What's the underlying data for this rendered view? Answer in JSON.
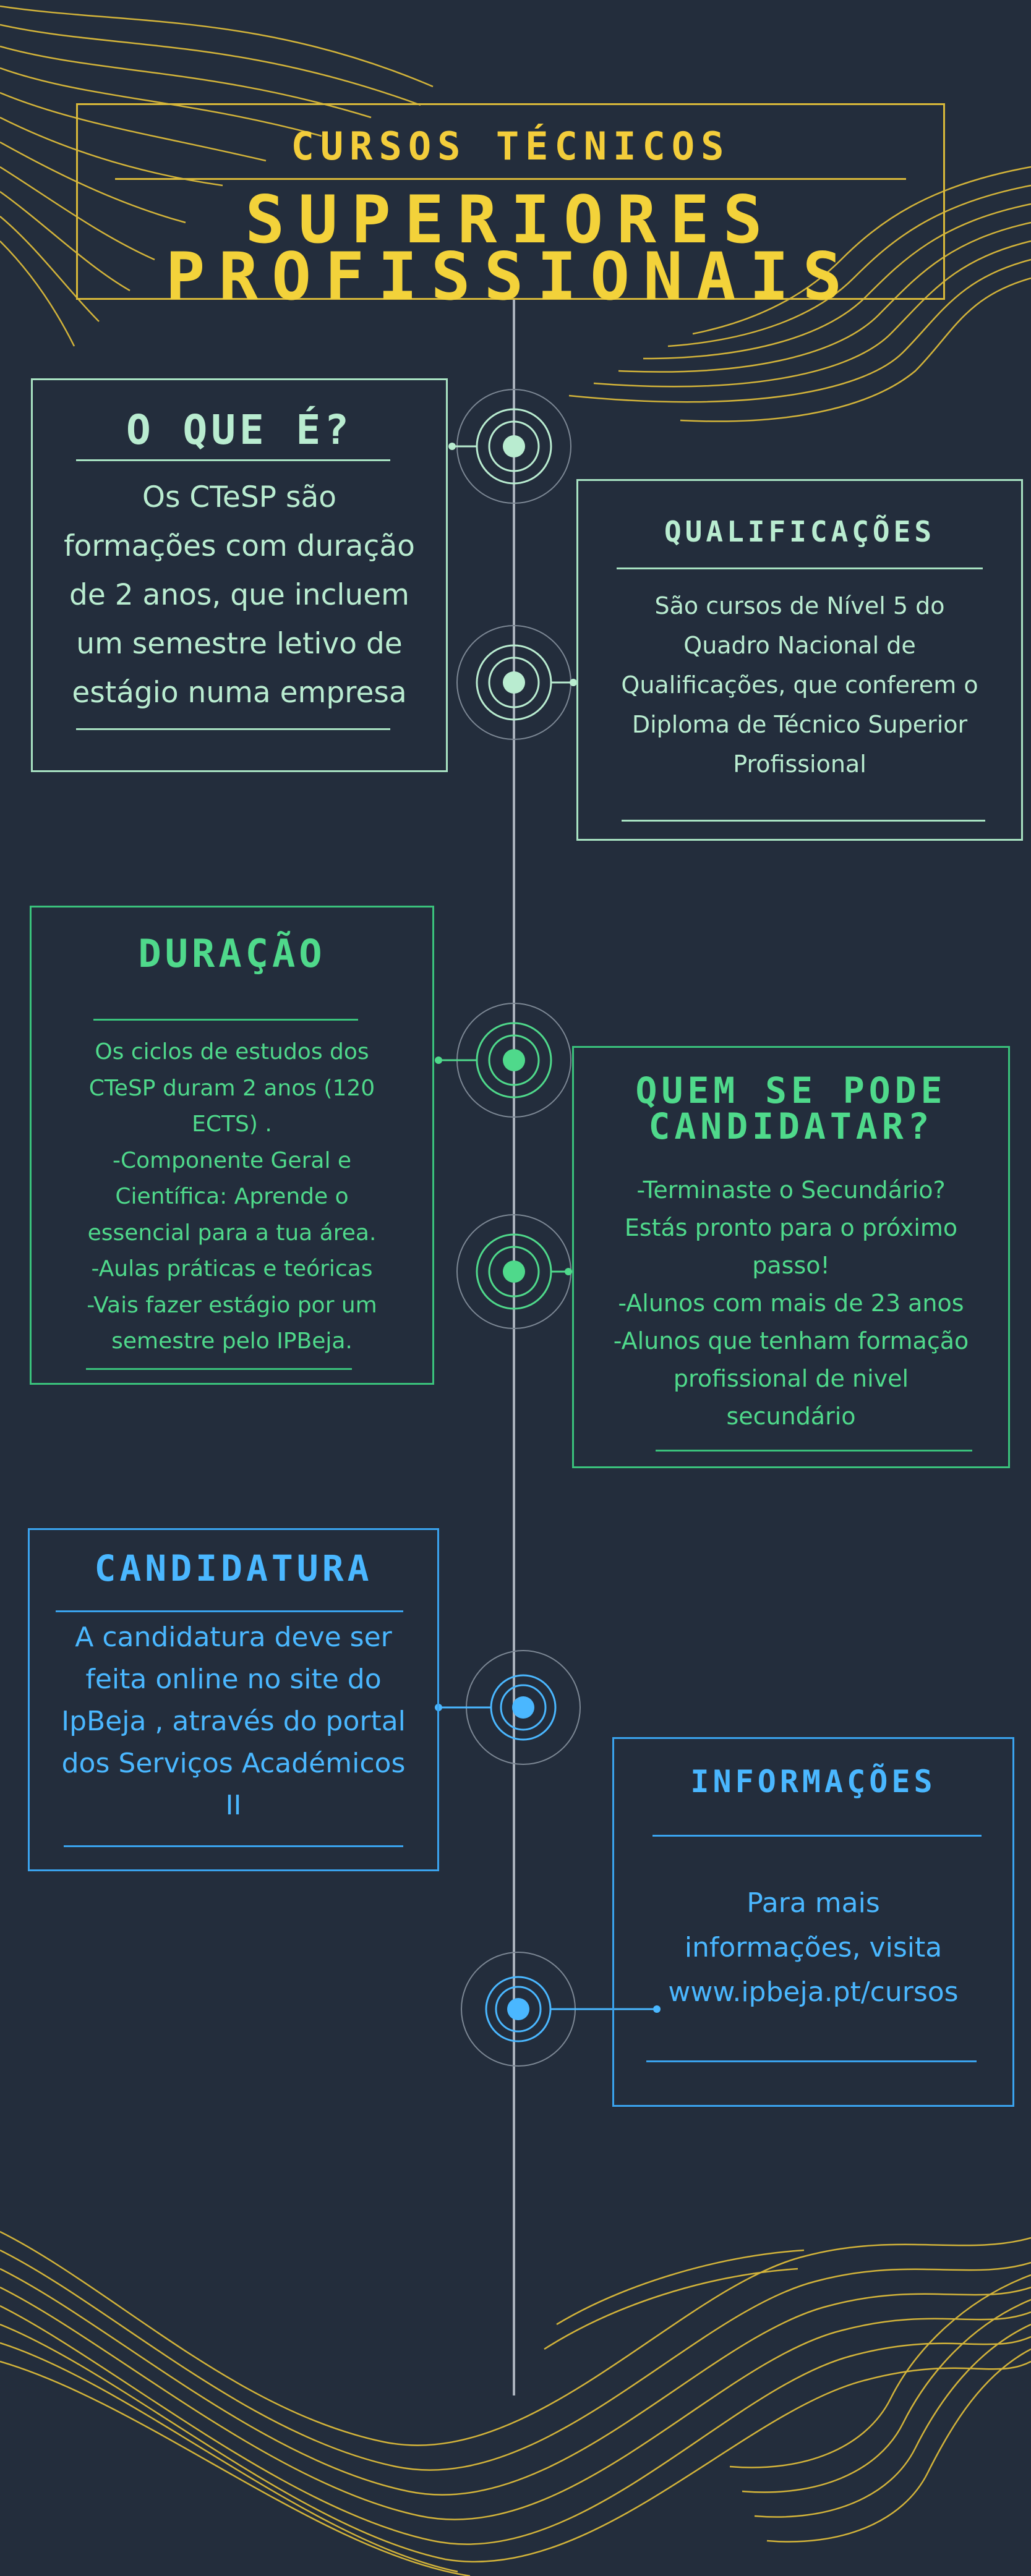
{
  "header": {
    "top_label": "CURSOS TÉCNICOS",
    "main_title_line1": "SUPERIORES",
    "main_title_line2": "PROFISSIONAIS"
  },
  "sections": {
    "o_que_e": {
      "title": "O QUE É?",
      "lines": [
        "Os CTeSP são",
        "formações com duração",
        "de 2 anos, que incluem",
        "um semestre letivo de",
        "estágio numa empresa"
      ]
    },
    "qualificacoes": {
      "title": "QUALIFICAÇÕES",
      "lines": [
        "São cursos de Nível 5 do",
        "Quadro Nacional de",
        "Qualificações, que conferem o",
        "Diploma de Técnico Superior",
        "Profissional"
      ]
    },
    "duracao": {
      "title": "DURAÇÃO",
      "lines": [
        "Os ciclos de estudos dos",
        "CTeSP   duram 2 anos (120",
        "ECTS) .",
        "-Componente Geral e",
        "Científica: Aprende o",
        "essencial para a tua área.",
        "-Aulas práticas e teóricas",
        "-Vais fazer estágio por um",
        "semestre pelo IPBeja."
      ]
    },
    "quem": {
      "title_line1": "QUEM SE PODE",
      "title_line2": "CANDIDATAR?",
      "lines": [
        "-Terminaste o Secundário?",
        "Estás pronto para o próximo",
        "passo!",
        "-Alunos com mais de 23 anos",
        "-Alunos que tenham formação",
        "profissional de nivel",
        "secundário"
      ]
    },
    "candidatura": {
      "title": "CANDIDATURA",
      "lines": [
        "A candidatura deve ser",
        "feita online no site do",
        "IpBeja , através do portal",
        "dos Serviços Académicos",
        "II"
      ]
    },
    "informacoes": {
      "title": "INFORMAÇÕES",
      "lines": [
        "Para mais",
        "informações, visita",
        "www.ipbeja.pt/cursos"
      ]
    }
  },
  "colors": {
    "background": "#232d3c",
    "gold": "#f3cd3b",
    "mint": "#b9ecd0",
    "green": "#4fd98b",
    "blue": "#4ab7ff",
    "timeline": "#a8b0bb"
  }
}
